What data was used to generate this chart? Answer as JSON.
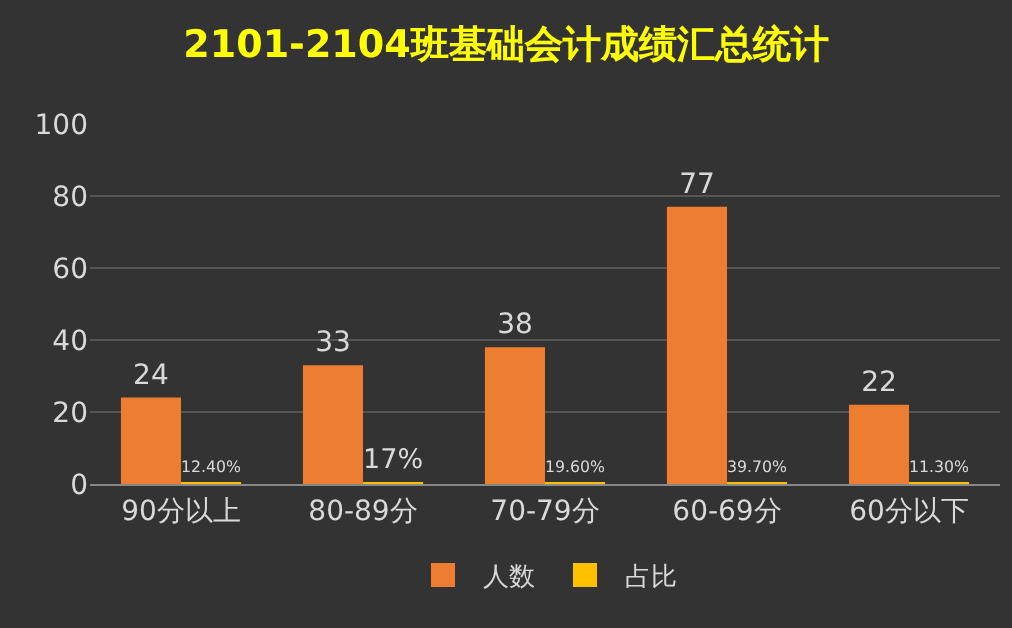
{
  "chart_data": {
    "type": "bar",
    "title": "2101-2104班基础会计成绩汇总统计",
    "categories": [
      "90分以上",
      "80-89分",
      "70-79分",
      "60-69分",
      "60分以下"
    ],
    "series": [
      {
        "name": "人数",
        "color": "#ed7d31",
        "values": [
          24,
          33,
          38,
          77,
          22
        ],
        "value_labels": [
          "24",
          "33",
          "38",
          "77",
          "22"
        ]
      },
      {
        "name": "占比",
        "color": "#ffc000",
        "values": [
          0.124,
          0.17,
          0.196,
          0.397,
          0.113
        ],
        "value_labels": [
          "12.40%",
          "17%",
          "19.60%",
          "39.70%",
          "11.30%"
        ]
      }
    ],
    "ylim": [
      0,
      100
    ],
    "yticks": [
      0,
      20,
      40,
      60,
      80,
      100
    ],
    "grid": "y",
    "legend": "bottom"
  }
}
